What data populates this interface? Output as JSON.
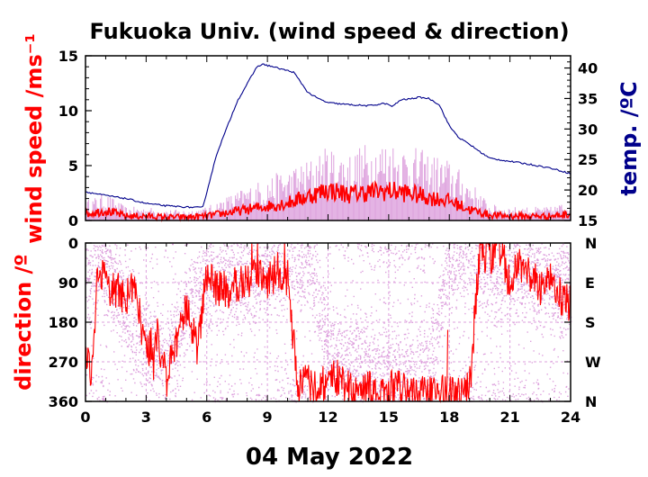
{
  "chart_data": [
    {
      "type": "line",
      "title": "Fukuoka Univ. (wind speed & direction)",
      "xlabel": "04 May 2022",
      "ylabel": "wind speed /ms⁻¹",
      "ylabel_right": "temp. /ºC",
      "xlim": [
        0,
        24
      ],
      "ylim": [
        0,
        15
      ],
      "ylim_right": [
        15,
        42
      ],
      "xticks": [
        "0",
        "3",
        "6",
        "9",
        "12",
        "15",
        "18",
        "21",
        "24"
      ],
      "yticks": [
        "0",
        "5",
        "10",
        "15"
      ],
      "yticks_right": [
        "15",
        "20",
        "25",
        "30",
        "35",
        "40"
      ],
      "grid": false,
      "series": [
        {
          "color": "#ff0000",
          "x": [
            0,
            1,
            2,
            3,
            4,
            5,
            6,
            7,
            8,
            9,
            10,
            11,
            12,
            13,
            14,
            15,
            16,
            17,
            18,
            19,
            20,
            21,
            22,
            23,
            24
          ],
          "values": [
            0.6,
            0.9,
            0.4,
            0.4,
            0.3,
            0.3,
            0.4,
            0.7,
            1.0,
            1.3,
            1.6,
            2.2,
            2.8,
            2.4,
            2.6,
            2.7,
            2.5,
            2.1,
            1.8,
            1.0,
            0.5,
            0.4,
            0.4,
            0.4,
            0.6
          ]
        },
        {
          "color": "#dda0dd",
          "x": [
            0,
            1,
            2,
            3,
            4,
            5,
            6,
            7,
            8,
            9,
            10,
            11,
            12,
            13,
            14,
            15,
            16,
            17,
            18,
            19,
            20,
            21,
            22,
            23,
            24
          ],
          "values": [
            1.5,
            2.0,
            1.0,
            1.0,
            0.8,
            0.8,
            1.0,
            1.8,
            2.5,
            3.2,
            3.8,
            4.5,
            5.5,
            5.0,
            5.8,
            6.0,
            5.5,
            5.0,
            4.5,
            3.0,
            1.2,
            1.0,
            1.0,
            1.0,
            1.5
          ]
        },
        {
          "color": "#00008b",
          "axis": "right",
          "x": [
            0,
            1,
            2,
            3,
            4,
            5,
            5.8,
            6.5,
            7.5,
            8.5,
            8.8,
            9.5,
            10.3,
            11,
            11.5,
            12,
            13,
            14,
            14.8,
            15.2,
            15.6,
            16,
            16.5,
            17,
            17.5,
            18,
            18.5,
            19,
            19.5,
            20,
            21,
            22,
            23,
            24
          ],
          "values": [
            19.7,
            19.1,
            18.6,
            17.8,
            17.4,
            17.2,
            17.1,
            26.0,
            34.5,
            40.3,
            40.6,
            40.0,
            39.3,
            36.0,
            35.0,
            34.3,
            34.0,
            33.8,
            34.2,
            33.7,
            34.8,
            34.9,
            35.2,
            35.0,
            34.0,
            30.5,
            28.5,
            27.5,
            26.3,
            25.2,
            24.7,
            24.2,
            23.6,
            22.7
          ]
        }
      ]
    },
    {
      "type": "scatter",
      "xlabel": "04 May 2022",
      "ylabel": "direction /º",
      "xlim": [
        0,
        24
      ],
      "ylim": [
        360,
        0
      ],
      "xticks": [
        "0",
        "3",
        "6",
        "9",
        "12",
        "15",
        "18",
        "21",
        "24"
      ],
      "yticks": [
        "0",
        "90",
        "180",
        "270",
        "360"
      ],
      "yticks_right": [
        "N",
        "E",
        "S",
        "W",
        "N"
      ],
      "grid": true,
      "series": [
        {
          "color": "#ff0000",
          "x": [
            0,
            0.3,
            0.6,
            1,
            1.5,
            2,
            2.5,
            3,
            3.5,
            4,
            4.5,
            5,
            5.5,
            6,
            6.5,
            7,
            7.5,
            8,
            8.5,
            9,
            9.5,
            10,
            10.5,
            11,
            11.5,
            12,
            12.5,
            13,
            13.5,
            14,
            14.5,
            15,
            15.5,
            16,
            16.5,
            17,
            17.5,
            18,
            18.5,
            19,
            19.5,
            20,
            20.5,
            21,
            21.5,
            22,
            22.5,
            23,
            23.5,
            24
          ],
          "values": [
            230,
            300,
            60,
            90,
            110,
            120,
            100,
            260,
            200,
            310,
            220,
            150,
            240,
            80,
            100,
            110,
            95,
            90,
            80,
            90,
            60,
            80,
            330,
            320,
            340,
            300,
            310,
            330,
            340,
            330,
            350,
            340,
            320,
            330,
            340,
            345,
            340,
            340,
            350,
            330,
            20,
            30,
            10,
            90,
            40,
            80,
            100,
            60,
            120,
            140
          ]
        },
        {
          "color": "#dda0dd",
          "x": [
            0,
            1,
            2,
            3,
            4,
            5,
            6,
            7,
            8,
            9,
            10,
            11,
            12,
            13,
            14,
            15,
            16,
            17,
            18,
            19,
            20,
            21,
            22,
            23,
            24
          ],
          "values": [
            60,
            50,
            150,
            240,
            280,
            160,
            80,
            70,
            90,
            60,
            40,
            20,
            250,
            270,
            280,
            300,
            290,
            290,
            30,
            20,
            60,
            80,
            70,
            90,
            100
          ]
        }
      ]
    }
  ]
}
